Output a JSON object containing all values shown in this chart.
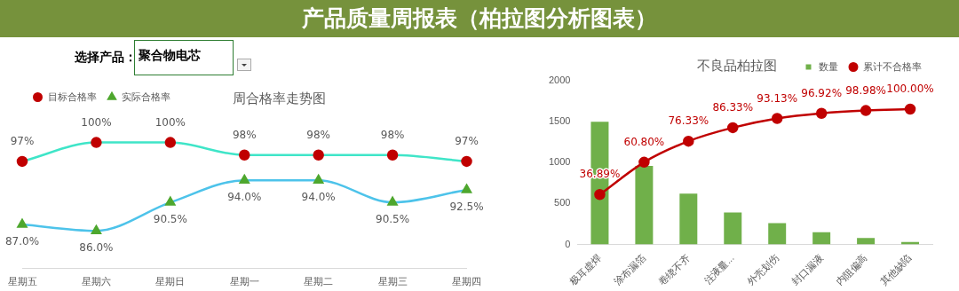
{
  "chart_data": [
    {
      "type": "line",
      "title": "周合格率走势图",
      "annotations": [
        "产品质量周报表（柏拉图分析图表）",
        "选择产品：",
        "聚合物电芯"
      ],
      "categories": [
        "星期五",
        "星期六",
        "星期日",
        "星期一",
        "星期二",
        "星期三",
        "星期四"
      ],
      "series": [
        {
          "name": "目标合格率",
          "color": "#3fe5c8",
          "marker": "circle",
          "values": [
            97,
            100,
            100,
            98,
            98,
            98,
            97
          ],
          "value_labels": [
            "97%",
            "100%",
            "100%",
            "98%",
            "98%",
            "98%",
            "97%"
          ]
        },
        {
          "name": "实际合格率",
          "color": "#4dc3ea",
          "marker": "triangle",
          "values": [
            87.0,
            86.0,
            90.5,
            94.0,
            94.0,
            90.5,
            92.5
          ],
          "value_labels": [
            "87.0%",
            "86.0%",
            "90.5%",
            "94.0%",
            "94.0%",
            "90.5%",
            "92.5%"
          ]
        }
      ],
      "tick_labels": "x",
      "legend": "top left"
    },
    {
      "type": "bar",
      "title": "不良品柏拉图",
      "categories": [
        "极耳虚焊",
        "涂布漏箔",
        "卷绕不齐",
        "注液量...",
        "外壳划伤",
        "封口漏液",
        "内阻偏高",
        "其他缺陷"
      ],
      "series": [
        {
          "name": "数量",
          "type": "bar",
          "color": "#70b04a",
          "values": [
            1500,
            960,
            620,
            390,
            260,
            150,
            80,
            30
          ]
        },
        {
          "name": "累计不合格率",
          "type": "line",
          "axis": "y2",
          "color": "#c00000",
          "marker": "circle",
          "values": [
            36.89,
            60.8,
            76.33,
            86.33,
            93.13,
            96.92,
            98.98,
            100.0
          ],
          "value_labels": [
            "36.89%",
            "60.80%",
            "76.33%",
            "86.33%",
            "93.13%",
            "96.92%",
            "98.98%",
            "100.00%"
          ]
        }
      ],
      "ylim": [
        0,
        2000
      ],
      "yticks": [
        0,
        500,
        1000,
        1500,
        2000
      ],
      "legend": "top right"
    }
  ]
}
